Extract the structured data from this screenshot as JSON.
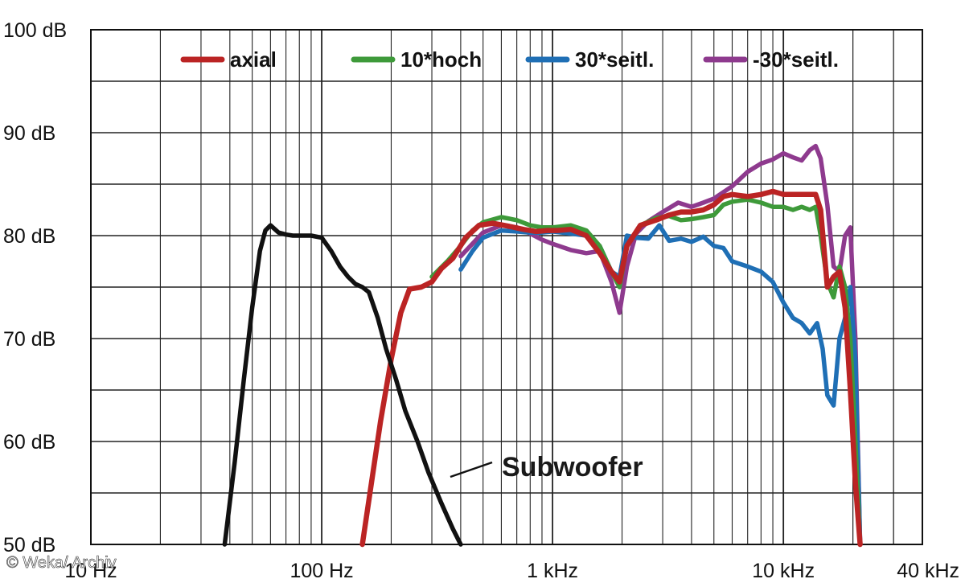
{
  "chart_data": {
    "type": "line",
    "title": "",
    "xlabel": "",
    "ylabel": "",
    "x_scale": "log",
    "xlim": [
      10,
      40000
    ],
    "ylim": [
      50,
      100
    ],
    "grid": true,
    "legend_position": "top",
    "y_ticks": [
      {
        "value": 100,
        "label": "100 dB"
      },
      {
        "value": 90,
        "label": "90 dB"
      },
      {
        "value": 80,
        "label": "80 dB"
      },
      {
        "value": 70,
        "label": "70 dB"
      },
      {
        "value": 60,
        "label": "60 dB"
      },
      {
        "value": 50,
        "label": "50 dB"
      }
    ],
    "x_ticks": [
      {
        "value": 10,
        "label": "10 Hz"
      },
      {
        "value": 100,
        "label": "100 Hz"
      },
      {
        "value": 1000,
        "label": "1 kHz"
      },
      {
        "value": 10000,
        "label": "10 kHz"
      },
      {
        "value": 40000,
        "label": "40 kHz"
      }
    ],
    "annotation": {
      "label": "Subwoofer",
      "x": 190,
      "y": 57
    },
    "series": [
      {
        "name": "-30*seitl.",
        "color": "#8e3a8e",
        "x": [
          400,
          500,
          600,
          700,
          800,
          900,
          1000,
          1200,
          1400,
          1600,
          1800,
          1950,
          2100,
          2300,
          2600,
          3000,
          3500,
          4000,
          4500,
          5000,
          6000,
          7000,
          8000,
          9000,
          10000,
          11000,
          12000,
          13000,
          13800,
          14500,
          15500,
          16500,
          17500,
          18500,
          19500,
          20500,
          21500
        ],
        "y": [
          78.0,
          80.3,
          81.0,
          80.8,
          80.2,
          79.6,
          79.2,
          78.6,
          78.3,
          78.5,
          75.5,
          72.5,
          77.0,
          80.2,
          81.4,
          82.3,
          83.2,
          82.8,
          83.2,
          83.6,
          84.8,
          86.2,
          87.0,
          87.4,
          88.0,
          87.6,
          87.3,
          88.3,
          88.7,
          87.5,
          83.0,
          77.0,
          76.5,
          80.0,
          80.8,
          70.0,
          50.0
        ]
      },
      {
        "name": "30*seitl.",
        "color": "#1f6fb5",
        "x": [
          400,
          450,
          500,
          600,
          700,
          800,
          900,
          1000,
          1200,
          1400,
          1600,
          1800,
          1950,
          2100,
          2300,
          2600,
          2900,
          3200,
          3600,
          4000,
          4500,
          5000,
          5500,
          6000,
          7000,
          8000,
          9000,
          10000,
          11000,
          12000,
          13000,
          14000,
          14800,
          15500,
          16500,
          17500,
          18500,
          19500,
          20500,
          21500
        ],
        "y": [
          76.7,
          78.5,
          79.8,
          80.5,
          80.4,
          80.3,
          80.3,
          80.4,
          80.2,
          80.0,
          79.0,
          76.5,
          76.0,
          80.0,
          79.8,
          79.7,
          81.0,
          79.5,
          79.7,
          79.4,
          79.9,
          79.0,
          78.8,
          77.5,
          77.0,
          76.5,
          75.5,
          73.5,
          72.0,
          71.5,
          70.5,
          71.5,
          69.0,
          64.5,
          63.5,
          70.0,
          72.0,
          75.0,
          68.0,
          50.0
        ]
      },
      {
        "name": "10*hoch",
        "color": "#3e9a3a",
        "x": [
          300,
          350,
          400,
          450,
          500,
          600,
          700,
          800,
          900,
          1000,
          1200,
          1400,
          1600,
          1800,
          1950,
          2100,
          2400,
          2800,
          3200,
          3600,
          4000,
          4500,
          5000,
          5500,
          6000,
          7000,
          8000,
          9000,
          10000,
          11000,
          12000,
          13000,
          13800,
          14500,
          15500,
          16500,
          17500,
          18500,
          19500,
          20500,
          21500
        ],
        "y": [
          76.0,
          77.5,
          79.0,
          80.5,
          81.3,
          81.8,
          81.5,
          81.0,
          80.8,
          80.8,
          81.0,
          80.5,
          79.0,
          76.5,
          75.0,
          79.0,
          81.0,
          81.7,
          81.9,
          81.5,
          81.6,
          81.8,
          82.0,
          83.0,
          83.3,
          83.5,
          83.2,
          82.8,
          82.8,
          82.5,
          82.8,
          82.5,
          82.8,
          80.0,
          75.5,
          74.0,
          77.0,
          75.0,
          70.0,
          60.0,
          50.0
        ]
      },
      {
        "name": "axial",
        "color": "#bb2424",
        "x": [
          150,
          180,
          200,
          220,
          240,
          270,
          300,
          330,
          370,
          420,
          480,
          550,
          650,
          750,
          850,
          950,
          1050,
          1200,
          1400,
          1600,
          1800,
          1950,
          2100,
          2400,
          2800,
          3200,
          3600,
          4000,
          4500,
          5000,
          5500,
          6000,
          7000,
          8000,
          9000,
          10000,
          11000,
          12000,
          13000,
          13800,
          14500,
          15500,
          16500,
          17500,
          18500,
          19500,
          20500,
          21500
        ],
        "y": [
          50.0,
          62.0,
          68.0,
          72.5,
          74.8,
          75.0,
          75.5,
          76.8,
          77.8,
          79.8,
          81.0,
          81.2,
          80.9,
          80.6,
          80.4,
          80.5,
          80.5,
          80.6,
          80.0,
          78.3,
          76.5,
          75.5,
          79.0,
          81.0,
          81.5,
          82.0,
          82.3,
          82.3,
          82.5,
          83.0,
          83.8,
          84.0,
          83.8,
          84.0,
          84.3,
          84.0,
          84.0,
          84.0,
          84.0,
          84.0,
          82.5,
          75.0,
          76.0,
          76.5,
          73.0,
          65.0,
          56.0,
          50.0
        ]
      },
      {
        "name": "",
        "color": "#111111",
        "x": [
          38,
          42,
          46,
          50,
          54,
          57,
          60,
          65,
          70,
          75,
          80,
          90,
          100,
          110,
          120,
          130,
          140,
          150,
          160,
          175,
          190,
          210,
          230,
          260,
          290,
          330,
          370,
          400
        ],
        "y": [
          50.0,
          58.0,
          66.0,
          73.0,
          78.5,
          80.5,
          81.0,
          80.3,
          80.1,
          80.0,
          80.0,
          80.0,
          79.8,
          78.5,
          77.0,
          76.0,
          75.3,
          75.0,
          74.5,
          72.0,
          69.0,
          66.0,
          63.0,
          60.0,
          57.0,
          54.0,
          51.5,
          50.0
        ]
      }
    ],
    "legend": [
      {
        "label": "axial",
        "color": "#bb2424"
      },
      {
        "label": "10*hoch",
        "color": "#3e9a3a"
      },
      {
        "label": "30*seitl.",
        "color": "#1f6fb5"
      },
      {
        "label": "-30*seitl.",
        "color": "#8e3a8e"
      }
    ]
  },
  "watermark": "© Weka/ Archiv"
}
